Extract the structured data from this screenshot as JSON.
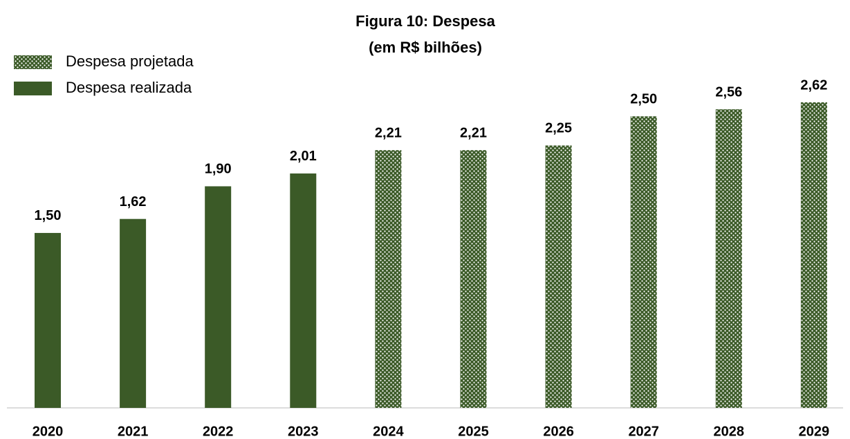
{
  "chart_data": {
    "type": "bar",
    "title": "Figura 10: Despesa",
    "subtitle": "(em R$ bilhões)",
    "categories": [
      "2020",
      "2021",
      "2022",
      "2023",
      "2024",
      "2025",
      "2026",
      "2027",
      "2028",
      "2029"
    ],
    "series": [
      {
        "name": "Despesa projetada",
        "color": "#3b5a27",
        "pattern": "dots",
        "values": [
          null,
          null,
          null,
          null,
          2.21,
          2.21,
          2.25,
          2.5,
          2.56,
          2.62
        ],
        "value_labels": [
          null,
          null,
          null,
          null,
          "2,21",
          "2,21",
          "2,25",
          "2,50",
          "2,56",
          "2,62"
        ]
      },
      {
        "name": "Despesa realizada",
        "color": "#3b5a27",
        "values": [
          1.5,
          1.62,
          1.9,
          2.01,
          null,
          null,
          null,
          null,
          null,
          null
        ],
        "value_labels": [
          "1,50",
          "1,62",
          "1,90",
          "2,01",
          null,
          null,
          null,
          null,
          null,
          null
        ]
      }
    ]
  }
}
